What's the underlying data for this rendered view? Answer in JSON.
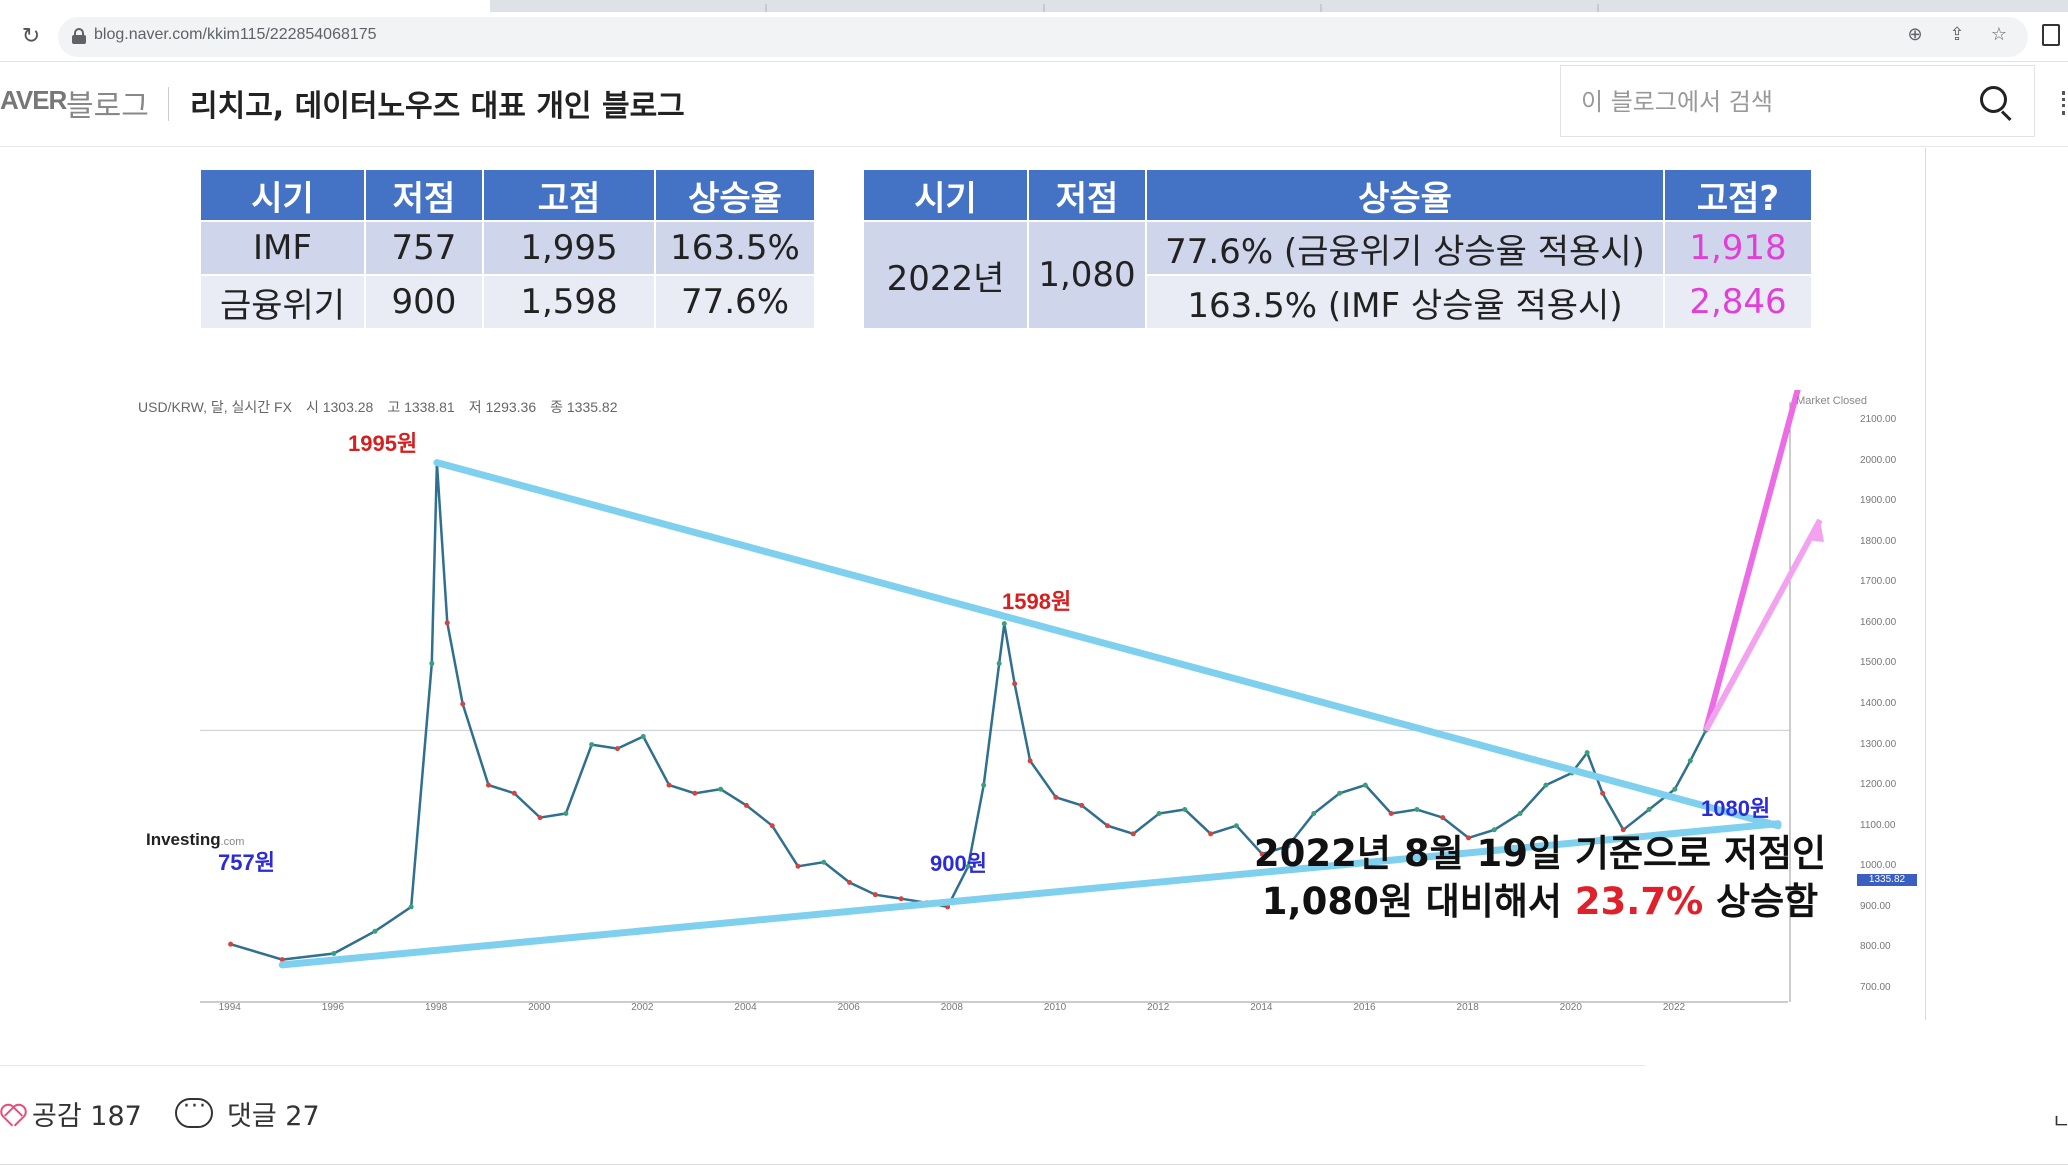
{
  "browser": {
    "url": "blog.naver.com/kkim115/222854068175"
  },
  "header": {
    "naver_logo": "AVER",
    "blog_label": "블로그",
    "blog_title": "리치고, 데이터노우즈 대표 개인 블로그",
    "search_placeholder": "이 블로그에서 검색"
  },
  "table_left": {
    "headers": [
      "시기",
      "저점",
      "고점",
      "상승율"
    ],
    "rows": [
      [
        "IMF",
        "757",
        "1,995",
        "163.5%"
      ],
      [
        "금융위기",
        "900",
        "1,598",
        "77.6%"
      ]
    ]
  },
  "table_right": {
    "headers": [
      "시기",
      "저점",
      "상승율",
      "고점?"
    ],
    "period": "2022년",
    "low": "1,080",
    "rows": [
      {
        "rate": "77.6% (금융위기 상승율 적용시)",
        "high": "1,918"
      },
      {
        "rate": "163.5% (IMF 상승율 적용시)",
        "high": "2,846"
      }
    ]
  },
  "chart_data": {
    "type": "line",
    "header": [
      "USD/KRW, 달, 실시간 FX",
      "시 1303.28",
      "고 1338.81",
      "저 1293.36",
      "종 1335.82"
    ],
    "market_status": "Market Closed",
    "x_ticks": [
      "1994",
      "1996",
      "1998",
      "2000",
      "2002",
      "2004",
      "2006",
      "2008",
      "2010",
      "2012",
      "2014",
      "2016",
      "2018",
      "2020",
      "2022"
    ],
    "y_ticks": [
      "2100.00",
      "2000.00",
      "1900.00",
      "1800.00",
      "1700.00",
      "1600.00",
      "1500.00",
      "1400.00",
      "1300.00",
      "1200.00",
      "1100.00",
      "1000.00",
      "900.00",
      "800.00",
      "700.00"
    ],
    "current_price_tag": "1335.82",
    "ylim": [
      700,
      2100
    ],
    "x": [
      1994.0,
      1995.0,
      1996.0,
      1996.8,
      1997.5,
      1997.9,
      1998.0,
      1998.2,
      1998.5,
      1999.0,
      1999.5,
      2000.0,
      2000.5,
      2001.0,
      2001.5,
      2002.0,
      2002.5,
      2003.0,
      2003.5,
      2004.0,
      2004.5,
      2005.0,
      2005.5,
      2006.0,
      2006.5,
      2007.0,
      2007.5,
      2007.9,
      2008.3,
      2008.6,
      2008.9,
      2009.0,
      2009.2,
      2009.5,
      2010.0,
      2010.5,
      2011.0,
      2011.5,
      2012.0,
      2012.5,
      2013.0,
      2013.5,
      2014.0,
      2014.5,
      2015.0,
      2015.5,
      2016.0,
      2016.5,
      2017.0,
      2017.5,
      2018.0,
      2018.5,
      2019.0,
      2019.5,
      2020.0,
      2020.3,
      2020.6,
      2021.0,
      2021.5,
      2022.0,
      2022.3,
      2022.6
    ],
    "series": [
      {
        "values": [
          808,
          770,
          785,
          840,
          900,
          1500,
          1995,
          1600,
          1400,
          1200,
          1180,
          1120,
          1130,
          1300,
          1290,
          1320,
          1200,
          1180,
          1190,
          1150,
          1100,
          1000,
          1010,
          960,
          930,
          920,
          910,
          900,
          1000,
          1200,
          1500,
          1598,
          1450,
          1260,
          1170,
          1150,
          1100,
          1080,
          1130,
          1140,
          1080,
          1100,
          1030,
          1050,
          1130,
          1180,
          1200,
          1130,
          1140,
          1120,
          1070,
          1090,
          1130,
          1200,
          1230,
          1280,
          1180,
          1090,
          1140,
          1190,
          1260,
          1335
        ]
      }
    ],
    "annotations": [
      {
        "text": "1995원",
        "x": 1998.0,
        "y": 1995
      },
      {
        "text": "1598원",
        "x": 2009.0,
        "y": 1598
      },
      {
        "text": "757원",
        "x": 1995.0,
        "y": 757
      },
      {
        "text": "900원",
        "x": 2007.9,
        "y": 900
      },
      {
        "text": "1080원",
        "x": 2021.0,
        "y": 1080
      }
    ],
    "trend_lines": [
      {
        "from": [
          1998.0,
          1995
        ],
        "to": [
          2024.0,
          1100
        ]
      },
      {
        "from": [
          1995.0,
          757
        ],
        "to": [
          2024.0,
          1105
        ]
      }
    ],
    "caption_line1": "2022년 8월 19일 기준으로 저점인",
    "caption_line2_pre": "1,080원 대비해서 ",
    "caption_pct": "23.7%",
    "caption_line2_post": " 상승함",
    "logo_text": "Investing",
    "logo_suffix": ".com"
  },
  "footer": {
    "likes": "공감 187",
    "comments": "댓글 27",
    "right_char": "ㄴ"
  }
}
